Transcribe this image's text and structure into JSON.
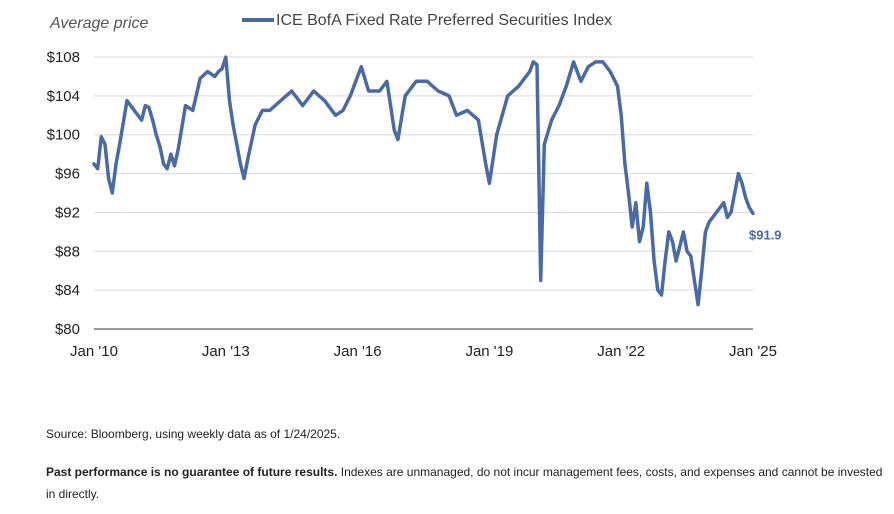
{
  "chart_data": {
    "type": "line",
    "ylabel": "Average price",
    "yunit_prefix": "$",
    "ylim": [
      80,
      108
    ],
    "yticks": [
      80,
      84,
      88,
      92,
      96,
      100,
      104,
      108
    ],
    "ytick_labels": [
      "$80",
      "$84",
      "$88",
      "$92",
      "$96",
      "$100",
      "$104",
      "$108"
    ],
    "xlim": [
      "2010-01",
      "2025-01"
    ],
    "xticks": [
      "2010-01",
      "2013-01",
      "2016-01",
      "2019-01",
      "2022-01",
      "2025-01"
    ],
    "xtick_labels": [
      "Jan '10",
      "Jan '13",
      "Jan '16",
      "Jan '19",
      "Jan '22",
      "Jan '25"
    ],
    "grid": true,
    "legend_position": "top",
    "series": [
      {
        "name": "ICE BofA Fixed Rate Preferred Securities Index",
        "color": "#4a6aa5",
        "x": [
          "2010-01",
          "2010-02",
          "2010-03",
          "2010-04",
          "2010-05",
          "2010-06",
          "2010-07",
          "2010-08",
          "2010-10",
          "2010-12",
          "2011-02",
          "2011-03",
          "2011-04",
          "2011-05",
          "2011-06",
          "2011-07",
          "2011-08",
          "2011-09",
          "2011-10",
          "2011-11",
          "2011-12",
          "2012-02",
          "2012-04",
          "2012-06",
          "2012-08",
          "2012-10",
          "2012-11",
          "2012-12",
          "2013-01",
          "2013-02",
          "2013-03",
          "2013-04",
          "2013-05",
          "2013-06",
          "2013-07",
          "2013-09",
          "2013-11",
          "2014-01",
          "2014-04",
          "2014-07",
          "2014-10",
          "2015-01",
          "2015-04",
          "2015-07",
          "2015-09",
          "2015-11",
          "2016-01",
          "2016-02",
          "2016-04",
          "2016-07",
          "2016-09",
          "2016-11",
          "2016-12",
          "2017-02",
          "2017-05",
          "2017-08",
          "2017-11",
          "2018-02",
          "2018-04",
          "2018-07",
          "2018-10",
          "2018-12",
          "2019-01",
          "2019-03",
          "2019-06",
          "2019-09",
          "2019-12",
          "2020-01",
          "2020-02",
          "2020-03",
          "2020-04",
          "2020-06",
          "2020-08",
          "2020-10",
          "2020-12",
          "2021-02",
          "2021-04",
          "2021-06",
          "2021-08",
          "2021-10",
          "2021-12",
          "2022-01",
          "2022-02",
          "2022-03",
          "2022-04",
          "2022-05",
          "2022-06",
          "2022-07",
          "2022-08",
          "2022-09",
          "2022-10",
          "2022-11",
          "2022-12",
          "2023-01",
          "2023-02",
          "2023-03",
          "2023-04",
          "2023-05",
          "2023-06",
          "2023-07",
          "2023-08",
          "2023-09",
          "2023-10",
          "2023-11",
          "2023-12",
          "2024-01",
          "2024-03",
          "2024-05",
          "2024-06",
          "2024-07",
          "2024-08",
          "2024-09",
          "2024-10",
          "2024-11",
          "2024-12",
          "2025-01"
        ],
        "y": [
          97,
          96.5,
          99.8,
          99,
          95.5,
          94,
          97,
          99,
          103.5,
          102.5,
          101.5,
          103,
          102.8,
          101.5,
          100,
          98.8,
          97,
          96.5,
          98,
          96.8,
          98.5,
          103,
          102.5,
          105.8,
          106.5,
          106,
          106.5,
          106.8,
          108,
          103.5,
          101,
          99,
          97,
          95.5,
          97.5,
          101,
          102.5,
          102.5,
          103.5,
          104.5,
          103,
          104.5,
          103.5,
          102,
          102.5,
          104,
          106,
          107,
          104.5,
          104.5,
          105.5,
          100.5,
          99.5,
          104,
          105.5,
          105.5,
          104.5,
          104,
          102,
          102.5,
          101.5,
          97,
          95,
          100,
          104,
          105,
          106.5,
          107.5,
          107.2,
          85,
          99,
          101.5,
          103,
          105,
          107.5,
          105.5,
          107,
          107.5,
          107.5,
          106.5,
          105,
          102,
          97,
          94,
          90.5,
          93,
          89,
          90.5,
          95,
          92,
          87,
          84,
          83.5,
          87,
          90,
          89,
          87,
          88.5,
          90,
          88,
          87.5,
          85,
          82.5,
          86,
          90,
          91,
          92,
          93,
          91.5,
          92,
          94,
          96,
          95,
          93.5,
          92.5,
          91.9
        ]
      }
    ],
    "annotations": [
      {
        "text": "$91.9",
        "x": "2025-01",
        "y": 91.9
      }
    ]
  },
  "source_text": "Source: Bloomberg, using weekly data as of 1/24/2025.",
  "disclaimer_bold": "Past performance is no guarantee of future results.",
  "disclaimer_rest": " Indexes are unmanaged, do not incur management fees, costs, and expenses and cannot be invested in directly."
}
